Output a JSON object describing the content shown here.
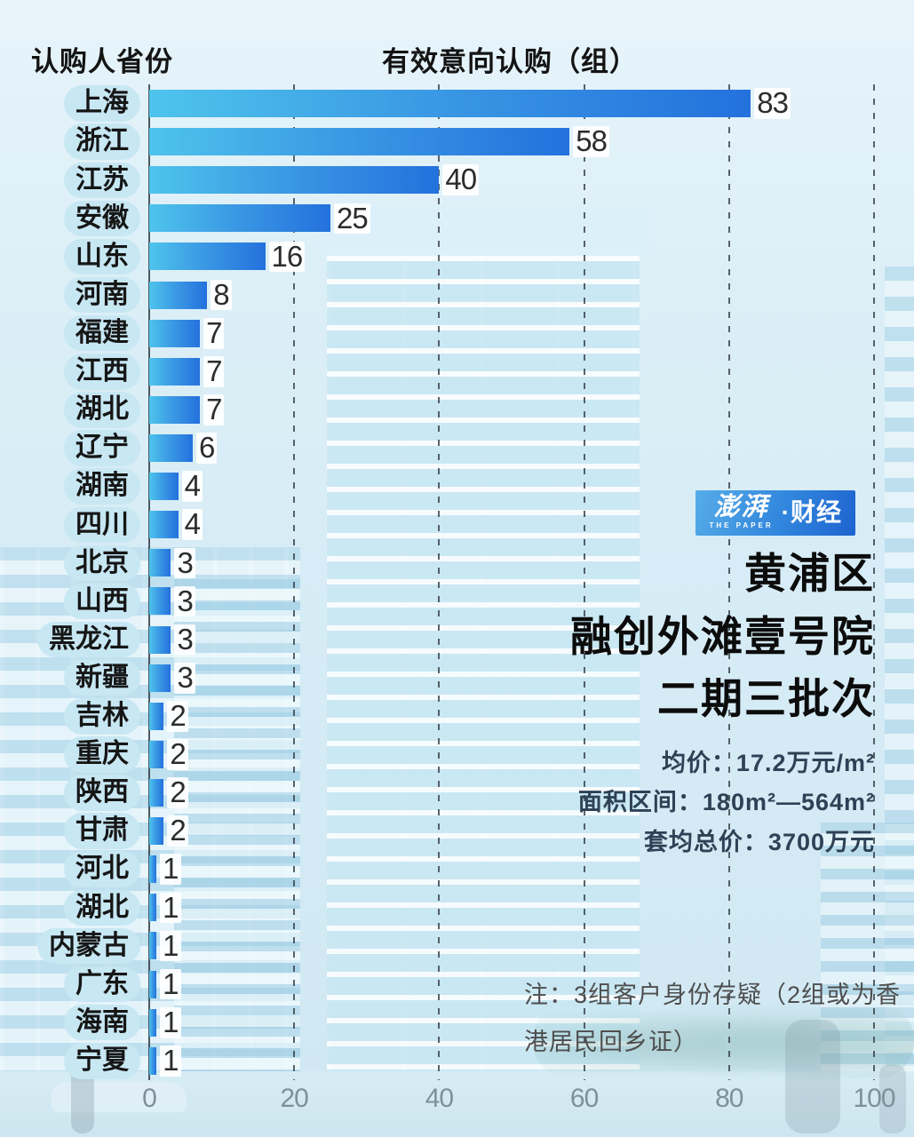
{
  "header": {
    "left_title": "认购人省份",
    "right_title": "有效意向认购（组）"
  },
  "chart_data": {
    "type": "bar",
    "orientation": "horizontal",
    "title": "有效意向认购（组）",
    "ylabel": "认购人省份",
    "xlabel": "有效意向认购（组）",
    "categories": [
      "上海",
      "浙江",
      "江苏",
      "安徽",
      "山东",
      "河南",
      "福建",
      "江西",
      "湖北",
      "辽宁",
      "湖南",
      "四川",
      "北京",
      "山西",
      "黑龙江",
      "新疆",
      "吉林",
      "重庆",
      "陕西",
      "甘肃",
      "河北",
      "湖北",
      "内蒙古",
      "广东",
      "海南",
      "宁夏"
    ],
    "values": [
      83,
      58,
      40,
      25,
      16,
      8,
      7,
      7,
      7,
      6,
      4,
      4,
      3,
      3,
      3,
      3,
      2,
      2,
      2,
      2,
      1,
      1,
      1,
      1,
      1,
      1
    ],
    "xlim": [
      0,
      100
    ],
    "x_ticks": [
      0,
      20,
      40,
      60,
      80,
      100
    ],
    "grid": "vertical-dashed",
    "legend": "none"
  },
  "branding": {
    "logo_main": "澎湃",
    "logo_sub": "THE PAPER",
    "logo_sep": "·",
    "logo_right": "财经"
  },
  "title_block": {
    "lines": [
      "黄浦区",
      "融创外滩壹号院",
      "二期三批次"
    ]
  },
  "details": [
    "均价：17.2万元/m²",
    "面积区间：180m²—564m²",
    "套均总价：3700万元"
  ],
  "note_lines": [
    "注：3组客户身份存疑（2组或为香",
    "港居民回乡证）"
  ],
  "colors": {
    "bar_gradient_start": "#4ec4ec",
    "bar_gradient_end": "#2471dd",
    "pill_background": "#c7e7f3",
    "logo_gradient_start": "#57ace8",
    "logo_gradient_end": "#1e63d0",
    "page_background": "#d5ebf5",
    "gridline": "#343d46"
  }
}
